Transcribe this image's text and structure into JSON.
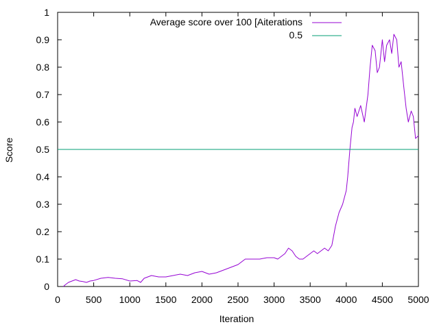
{
  "chart_data": {
    "type": "line",
    "title": "",
    "xlabel": "Iteration",
    "ylabel": "Score",
    "xlim": [
      0,
      5000
    ],
    "ylim": [
      0,
      1
    ],
    "xticks": [
      0,
      500,
      1000,
      1500,
      2000,
      2500,
      3000,
      3500,
      4000,
      4500,
      5000
    ],
    "yticks": [
      0,
      0.1,
      0.2,
      0.3,
      0.4,
      0.5,
      0.6,
      0.7,
      0.8,
      0.9,
      1
    ],
    "xtick_labels": [
      "0",
      "500",
      "1000",
      "1500",
      "2000",
      "2500",
      "3000",
      "3500",
      "4000",
      "4500",
      "5000"
    ],
    "ytick_labels": [
      "0",
      "0.1",
      "0.2",
      "0.3",
      "0.4",
      "0.5",
      "0.6",
      "0.7",
      "0.8",
      "0.9",
      "1"
    ],
    "grid": false,
    "legend_position": "top-right",
    "series": [
      {
        "name": "Average score over 100 [Aiterations",
        "color": "#9400d3",
        "x": [
          80,
          100,
          150,
          200,
          250,
          300,
          350,
          400,
          450,
          500,
          600,
          700,
          800,
          900,
          1000,
          1100,
          1150,
          1200,
          1300,
          1400,
          1500,
          1600,
          1700,
          1800,
          1900,
          2000,
          2100,
          2200,
          2300,
          2400,
          2500,
          2600,
          2700,
          2800,
          2900,
          3000,
          3050,
          3100,
          3150,
          3200,
          3250,
          3300,
          3350,
          3400,
          3450,
          3500,
          3550,
          3600,
          3650,
          3700,
          3750,
          3800,
          3850,
          3900,
          3950,
          4000,
          4020,
          4050,
          4080,
          4100,
          4120,
          4150,
          4200,
          4250,
          4300,
          4330,
          4360,
          4400,
          4430,
          4460,
          4500,
          4530,
          4560,
          4600,
          4630,
          4660,
          4700,
          4730,
          4760,
          4800,
          4830,
          4860,
          4900,
          4930,
          4960,
          5000
        ],
        "y": [
          0.0,
          0.005,
          0.015,
          0.02,
          0.025,
          0.02,
          0.018,
          0.015,
          0.02,
          0.022,
          0.03,
          0.033,
          0.03,
          0.028,
          0.02,
          0.022,
          0.015,
          0.03,
          0.04,
          0.035,
          0.035,
          0.04,
          0.045,
          0.04,
          0.05,
          0.055,
          0.045,
          0.05,
          0.06,
          0.07,
          0.08,
          0.1,
          0.1,
          0.1,
          0.105,
          0.105,
          0.1,
          0.11,
          0.12,
          0.14,
          0.13,
          0.11,
          0.1,
          0.1,
          0.11,
          0.12,
          0.13,
          0.12,
          0.13,
          0.14,
          0.13,
          0.15,
          0.22,
          0.27,
          0.3,
          0.35,
          0.4,
          0.5,
          0.58,
          0.6,
          0.65,
          0.62,
          0.66,
          0.6,
          0.7,
          0.8,
          0.88,
          0.86,
          0.78,
          0.8,
          0.9,
          0.82,
          0.88,
          0.9,
          0.85,
          0.92,
          0.9,
          0.8,
          0.82,
          0.72,
          0.65,
          0.6,
          0.64,
          0.62,
          0.54,
          0.55
        ]
      },
      {
        "name": "0.5",
        "color": "#009e73",
        "x": [
          0,
          5000
        ],
        "y": [
          0.5,
          0.5
        ]
      }
    ]
  }
}
